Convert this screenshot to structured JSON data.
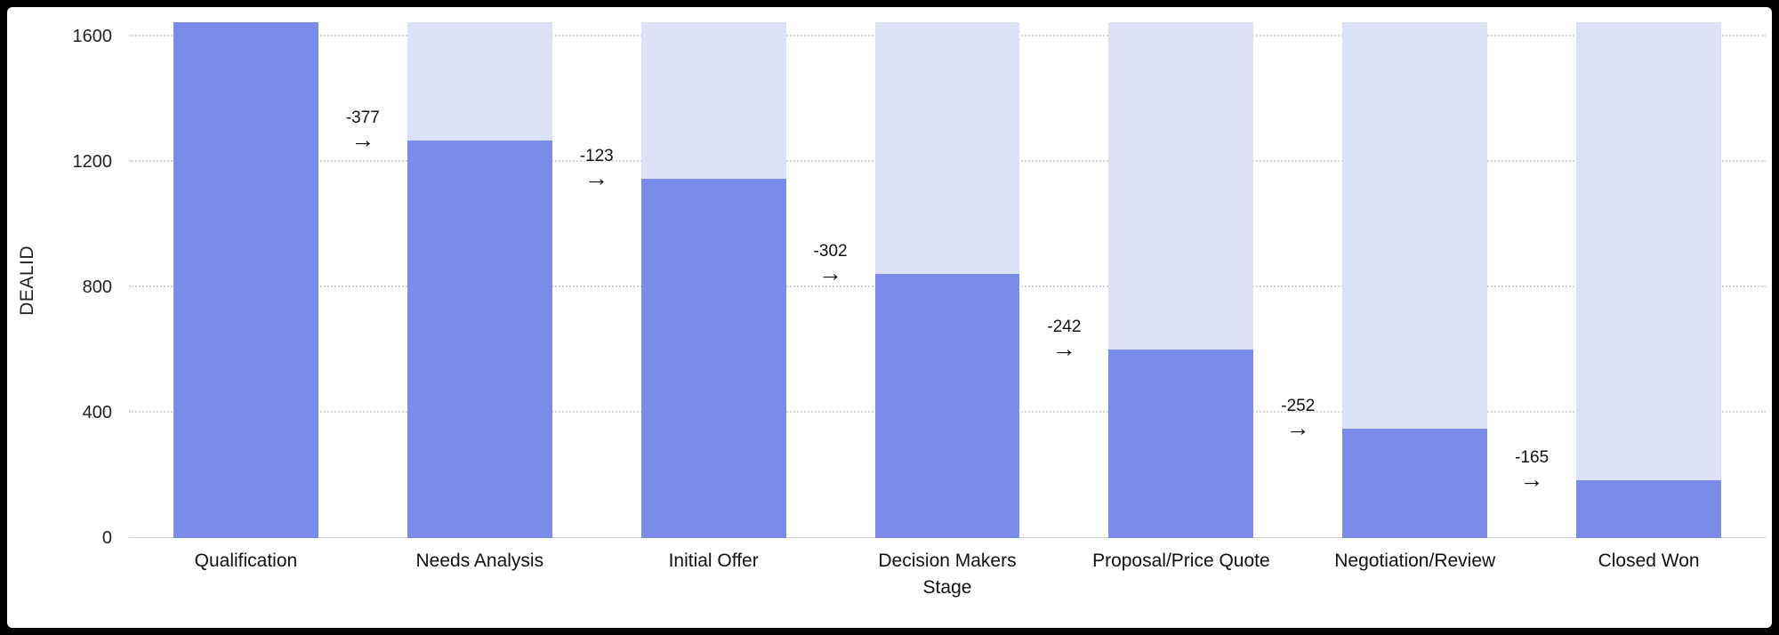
{
  "chart_data": {
    "type": "bar",
    "subtype": "funnel",
    "title": "",
    "xlabel": "Stage",
    "ylabel": "DEALID",
    "categories": [
      "Qualification",
      "Needs Analysis",
      "Initial Offer",
      "Decision Makers",
      "Proposal/Price Quote",
      "Negotiation/Review",
      "Closed Won"
    ],
    "values": [
      1645,
      1268,
      1145,
      843,
      601,
      349,
      184
    ],
    "drops": [
      -377,
      -123,
      -302,
      -242,
      -252,
      -165
    ],
    "drop_labels": [
      "-377",
      "-123",
      "-302",
      "-242",
      "-252",
      "-165"
    ],
    "arrow_glyph": "→",
    "y_ticks": [
      0,
      400,
      800,
      1200,
      1600
    ],
    "y_tick_labels": [
      "0",
      "400",
      "800",
      "1200",
      "1600"
    ],
    "ylim": [
      0,
      1645
    ],
    "grid": "dotted horizontal",
    "legend": "none",
    "colors": {
      "bar": "#7b8ce8",
      "bar_background": "#dbe2f8",
      "gridline": "#d6d6d6",
      "text": "#111111",
      "plot_background": "#ffffff",
      "frame": "#000000"
    }
  }
}
